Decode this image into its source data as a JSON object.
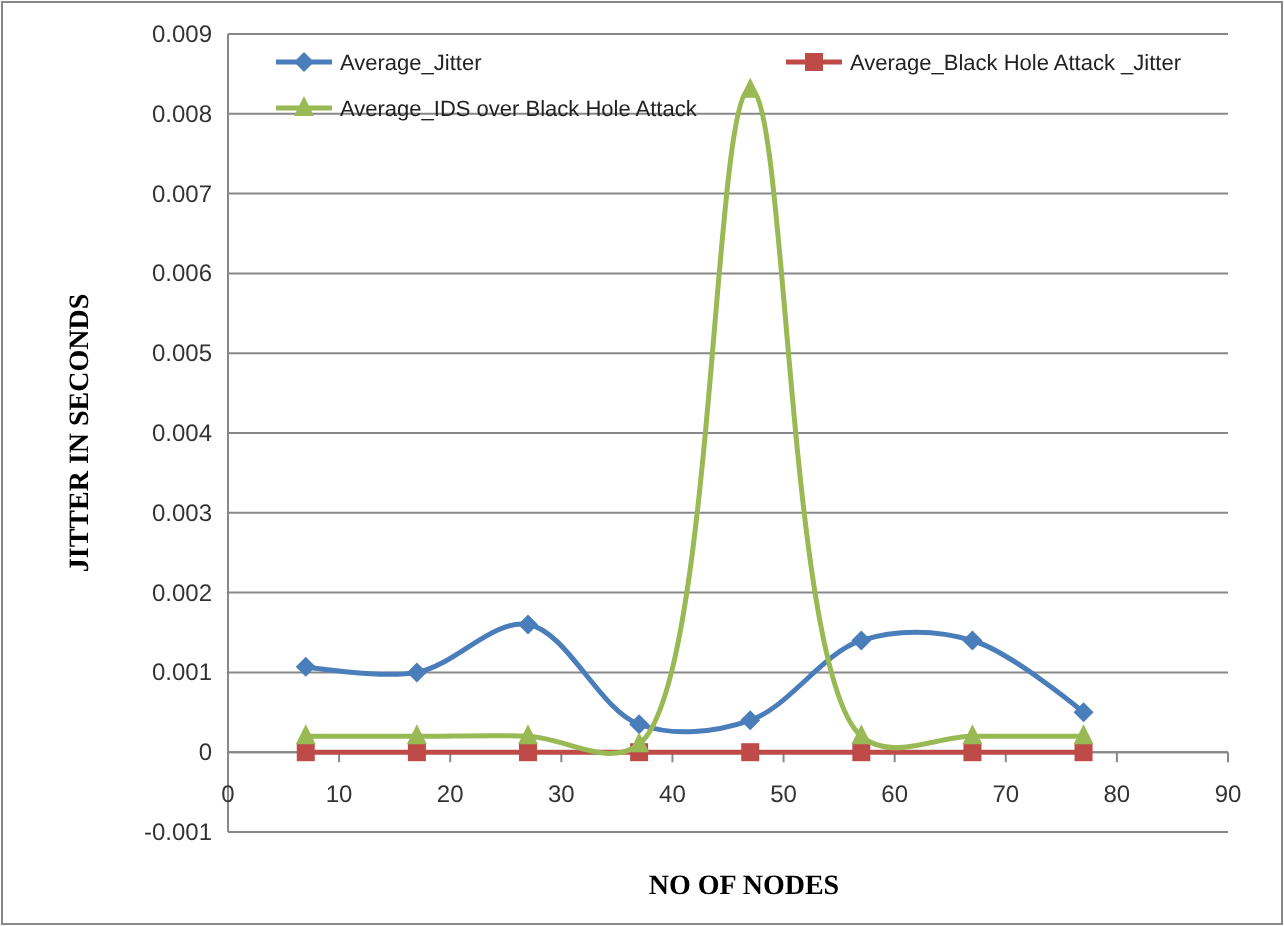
{
  "chart_data": {
    "type": "line",
    "xlabel": "NO OF NODES",
    "ylabel": "JITTER IN SECONDS",
    "x": [
      7,
      17,
      27,
      37,
      47,
      57,
      67,
      77
    ],
    "series": [
      {
        "name": "Average_Jitter",
        "color": "#4a7ebb",
        "marker": "diamond",
        "values": [
          0.00107,
          0.001,
          0.0016,
          0.00035,
          0.0004,
          0.0014,
          0.0014,
          0.0005
        ]
      },
      {
        "name": "Average_Black Hole Attack _Jitter",
        "color": "#be4b48",
        "marker": "square",
        "values": [
          0,
          0,
          0,
          0,
          0,
          0,
          0,
          0
        ]
      },
      {
        "name": "Average_IDS over Black Hole Attack",
        "color": "#98b954",
        "marker": "triangle",
        "values": [
          0.0002,
          0.0002,
          0.0002,
          0.0001,
          0.0083,
          0.0002,
          0.0002,
          0.0002
        ]
      }
    ],
    "xlim": [
      0,
      90
    ],
    "xticks": [
      0,
      10,
      20,
      30,
      40,
      50,
      60,
      70,
      80,
      90
    ],
    "ylim": [
      -0.001,
      0.009
    ],
    "yticks": [
      -0.001,
      0,
      0.001,
      0.002,
      0.003,
      0.004,
      0.005,
      0.006,
      0.007,
      0.008,
      0.009
    ],
    "grid": "y",
    "legend": "top"
  }
}
